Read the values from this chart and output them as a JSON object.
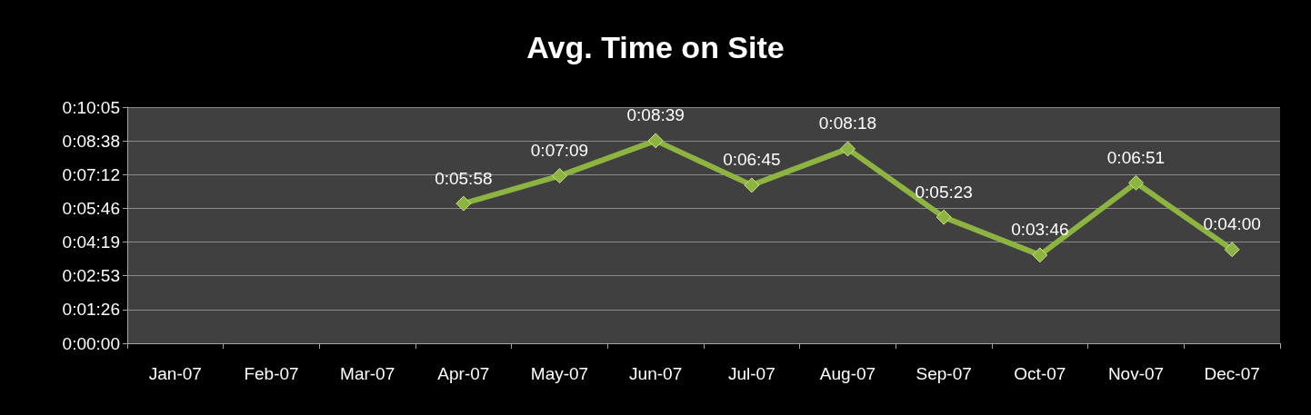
{
  "chart_data": {
    "type": "line",
    "title": "Avg. Time on Site",
    "categories": [
      "Jan-07",
      "Feb-07",
      "Mar-07",
      "Apr-07",
      "May-07",
      "Jun-07",
      "Jul-07",
      "Aug-07",
      "Sep-07",
      "Oct-07",
      "Nov-07",
      "Dec-07"
    ],
    "series": [
      {
        "color": "#8db441",
        "values": [
          null,
          null,
          null,
          358,
          429,
          519,
          405,
          498,
          323,
          226,
          411,
          240
        ],
        "value_labels": [
          null,
          null,
          null,
          "0:05:58",
          "0:07:09",
          "0:08:39",
          "0:06:45",
          "0:08:18",
          "0:05:23",
          "0:03:46",
          "0:06:51",
          "0:04:00"
        ]
      }
    ],
    "ylim": [
      0,
      604.8
    ],
    "yticks": [
      {
        "value": 0,
        "label": "0:00:00"
      },
      {
        "value": 86.4,
        "label": "0:01:26"
      },
      {
        "value": 172.8,
        "label": "0:02:53"
      },
      {
        "value": 259.2,
        "label": "0:04:19"
      },
      {
        "value": 345.6,
        "label": "0:05:46"
      },
      {
        "value": 432,
        "label": "0:07:12"
      },
      {
        "value": 518.4,
        "label": "0:08:38"
      },
      {
        "value": 604.8,
        "label": "0:10:05"
      }
    ],
    "grid": "y",
    "marker": "diamond",
    "line_style": "solid"
  }
}
